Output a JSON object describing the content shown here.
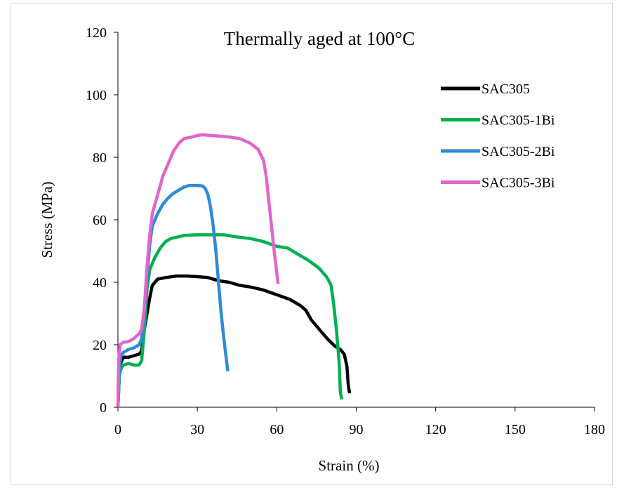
{
  "chart_data": {
    "type": "line",
    "title": "Thermally aged at 100°C",
    "xlabel": "Strain (%)",
    "ylabel": "Stress (MPa)",
    "xlim": [
      0,
      180
    ],
    "ylim": [
      0,
      120
    ],
    "xticks": [
      0,
      30,
      60,
      90,
      120,
      150,
      180
    ],
    "yticks": [
      0,
      20,
      40,
      60,
      80,
      100,
      120
    ],
    "grid": false,
    "legend_position": "top-right",
    "series": [
      {
        "name": "SAC305",
        "color": "#000000",
        "points": [
          [
            0,
            0
          ],
          [
            0.5,
            10
          ],
          [
            1,
            14
          ],
          [
            2,
            16
          ],
          [
            4,
            16
          ],
          [
            6,
            16.5
          ],
          [
            8,
            17
          ],
          [
            9,
            18
          ],
          [
            10,
            25
          ],
          [
            11,
            30
          ],
          [
            12,
            35
          ],
          [
            13,
            39
          ],
          [
            15,
            41
          ],
          [
            18,
            41.5
          ],
          [
            22,
            42
          ],
          [
            26,
            42
          ],
          [
            30,
            41.8
          ],
          [
            34,
            41.5
          ],
          [
            38,
            40.5
          ],
          [
            42,
            40
          ],
          [
            46,
            39
          ],
          [
            50,
            38.5
          ],
          [
            55,
            37.5
          ],
          [
            60,
            36
          ],
          [
            65,
            34.5
          ],
          [
            69,
            32.5
          ],
          [
            71,
            31
          ],
          [
            73,
            28
          ],
          [
            76,
            25
          ],
          [
            79,
            22
          ],
          [
            82,
            19.5
          ],
          [
            84,
            18.5
          ],
          [
            85.5,
            17
          ],
          [
            86.5,
            13
          ],
          [
            87,
            7
          ],
          [
            87.5,
            4.5
          ]
        ]
      },
      {
        "name": "SAC305-1Bi",
        "color": "#00b050",
        "points": [
          [
            0,
            0
          ],
          [
            0.5,
            10
          ],
          [
            1,
            12
          ],
          [
            2,
            13.5
          ],
          [
            4,
            14
          ],
          [
            6,
            13.5
          ],
          [
            8,
            13.5
          ],
          [
            9,
            15
          ],
          [
            10,
            25
          ],
          [
            11,
            38
          ],
          [
            12,
            44
          ],
          [
            14,
            48
          ],
          [
            16,
            51
          ],
          [
            18,
            53
          ],
          [
            20,
            54
          ],
          [
            25,
            55
          ],
          [
            30,
            55.2
          ],
          [
            35,
            55.2
          ],
          [
            40,
            55.2
          ],
          [
            45,
            54.5
          ],
          [
            50,
            54
          ],
          [
            55,
            53
          ],
          [
            60,
            51.5
          ],
          [
            64,
            51
          ],
          [
            68,
            49
          ],
          [
            72,
            47
          ],
          [
            76,
            44.5
          ],
          [
            79,
            41.5
          ],
          [
            80.5,
            39
          ],
          [
            81.5,
            33
          ],
          [
            82.5,
            25
          ],
          [
            83.5,
            15
          ],
          [
            84,
            5
          ],
          [
            84.5,
            2.5
          ]
        ]
      },
      {
        "name": "SAC305-2Bi",
        "color": "#2e8bd6",
        "points": [
          [
            0,
            0
          ],
          [
            0.5,
            12
          ],
          [
            1,
            16
          ],
          [
            2,
            17.5
          ],
          [
            4,
            18.5
          ],
          [
            6,
            19
          ],
          [
            8,
            20
          ],
          [
            9,
            22
          ],
          [
            10,
            30
          ],
          [
            11,
            42
          ],
          [
            12,
            52
          ],
          [
            13,
            58
          ],
          [
            15,
            62
          ],
          [
            17,
            65
          ],
          [
            19,
            67
          ],
          [
            21,
            68.5
          ],
          [
            23,
            69.5
          ],
          [
            25,
            70.5
          ],
          [
            27,
            71
          ],
          [
            30,
            71
          ],
          [
            32,
            70.8
          ],
          [
            33,
            70
          ],
          [
            34,
            68
          ],
          [
            35,
            64
          ],
          [
            36,
            58
          ],
          [
            37,
            50
          ],
          [
            38,
            40
          ],
          [
            39,
            30
          ],
          [
            40,
            22
          ],
          [
            41,
            15
          ],
          [
            41.5,
            11.5
          ]
        ]
      },
      {
        "name": "SAC305-3Bi",
        "color": "#e066cc",
        "points": [
          [
            0,
            0
          ],
          [
            0.3,
            15
          ],
          [
            0.8,
            20
          ],
          [
            2,
            20.8
          ],
          [
            4,
            21
          ],
          [
            6,
            22
          ],
          [
            8,
            23.5
          ],
          [
            9,
            25
          ],
          [
            10,
            32
          ],
          [
            11,
            45
          ],
          [
            12,
            55
          ],
          [
            13,
            62
          ],
          [
            15,
            68
          ],
          [
            17,
            74
          ],
          [
            19,
            78
          ],
          [
            21,
            82
          ],
          [
            23,
            84.5
          ],
          [
            25,
            86
          ],
          [
            28,
            86.5
          ],
          [
            30,
            87
          ],
          [
            32,
            87.2
          ],
          [
            35,
            87
          ],
          [
            38,
            86.8
          ],
          [
            42,
            86.5
          ],
          [
            46,
            86
          ],
          [
            50,
            84.5
          ],
          [
            53,
            82.5
          ],
          [
            55,
            79
          ],
          [
            56,
            74
          ],
          [
            57,
            66
          ],
          [
            58,
            58
          ],
          [
            59,
            50
          ],
          [
            60,
            43
          ],
          [
            60.5,
            39.5
          ]
        ]
      }
    ]
  }
}
